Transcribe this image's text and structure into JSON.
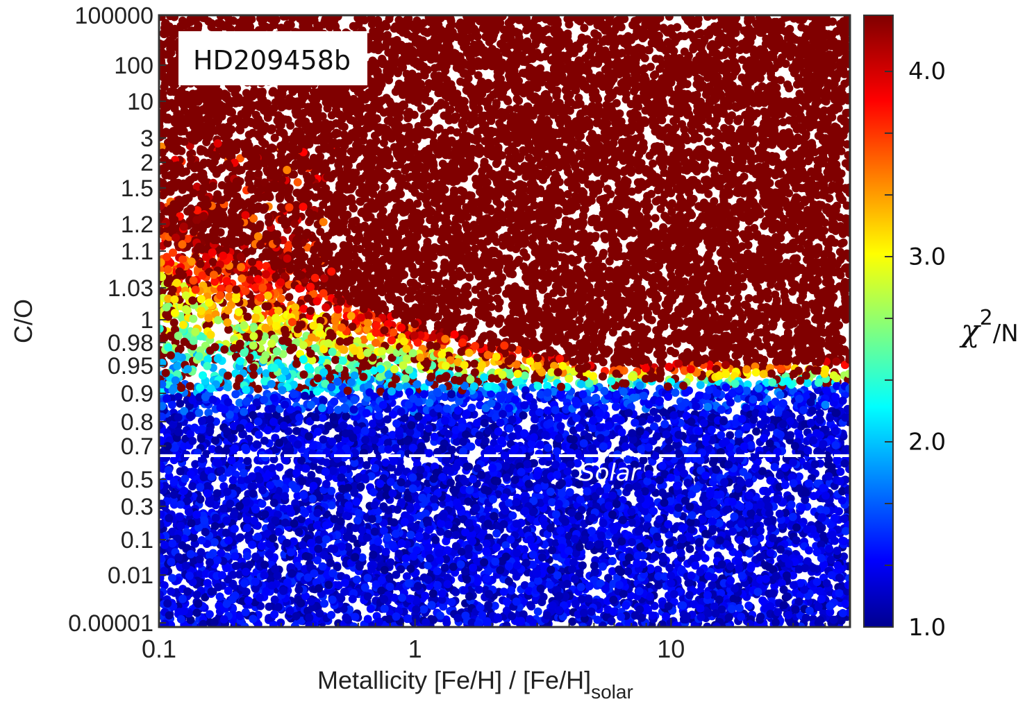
{
  "chart_data": {
    "type": "scatter",
    "title": "",
    "xlabel": "Metallicity [Fe/H] / [Fe/H]",
    "xlabel_subscript": "solar",
    "ylabel": "C/O",
    "x_scale": "log",
    "xlim": [
      0.1,
      50
    ],
    "x_ticks": [
      "0.1",
      "1",
      "10"
    ],
    "y_ticks": [
      "100000",
      "100",
      "10",
      "3",
      "2",
      "1.5",
      "1.2",
      "1.1",
      "1.03",
      "1",
      "0.98",
      "0.95",
      "0.9",
      "0.8",
      "0.7",
      "0.5",
      "0.3",
      "0.1",
      "0.01",
      "0.00001"
    ],
    "y_ticks_note": "non-uniform ordinal axis",
    "colorbar": {
      "label_chi": "χ",
      "label_exp": "2",
      "label_rest": "/N",
      "range": [
        1.0,
        4.3
      ],
      "ticks": [
        "1.0",
        "2.0",
        "3.0",
        "4.0"
      ],
      "colormap": "jet"
    },
    "annotation": "HD209458b",
    "reference_line": {
      "label": "Solar",
      "y": "0.7 to 0.5 boundary (solar C/O ≈ 0.55)",
      "style": "dashed",
      "color": "#ffffff"
    },
    "data_summary": {
      "best_fit_region": "C/O below about 0.9 for all metallicities (χ²/N ≈ 1.0–1.5)",
      "transition_band": "C/O ≈ 0.9–1.2 at low metallicity, narrowing to ≈ 0.9–0.95 at high metallicity",
      "poor_fit_region": "C/O above about 1 for most metallicities (χ²/N ≥ 4.3)"
    }
  }
}
